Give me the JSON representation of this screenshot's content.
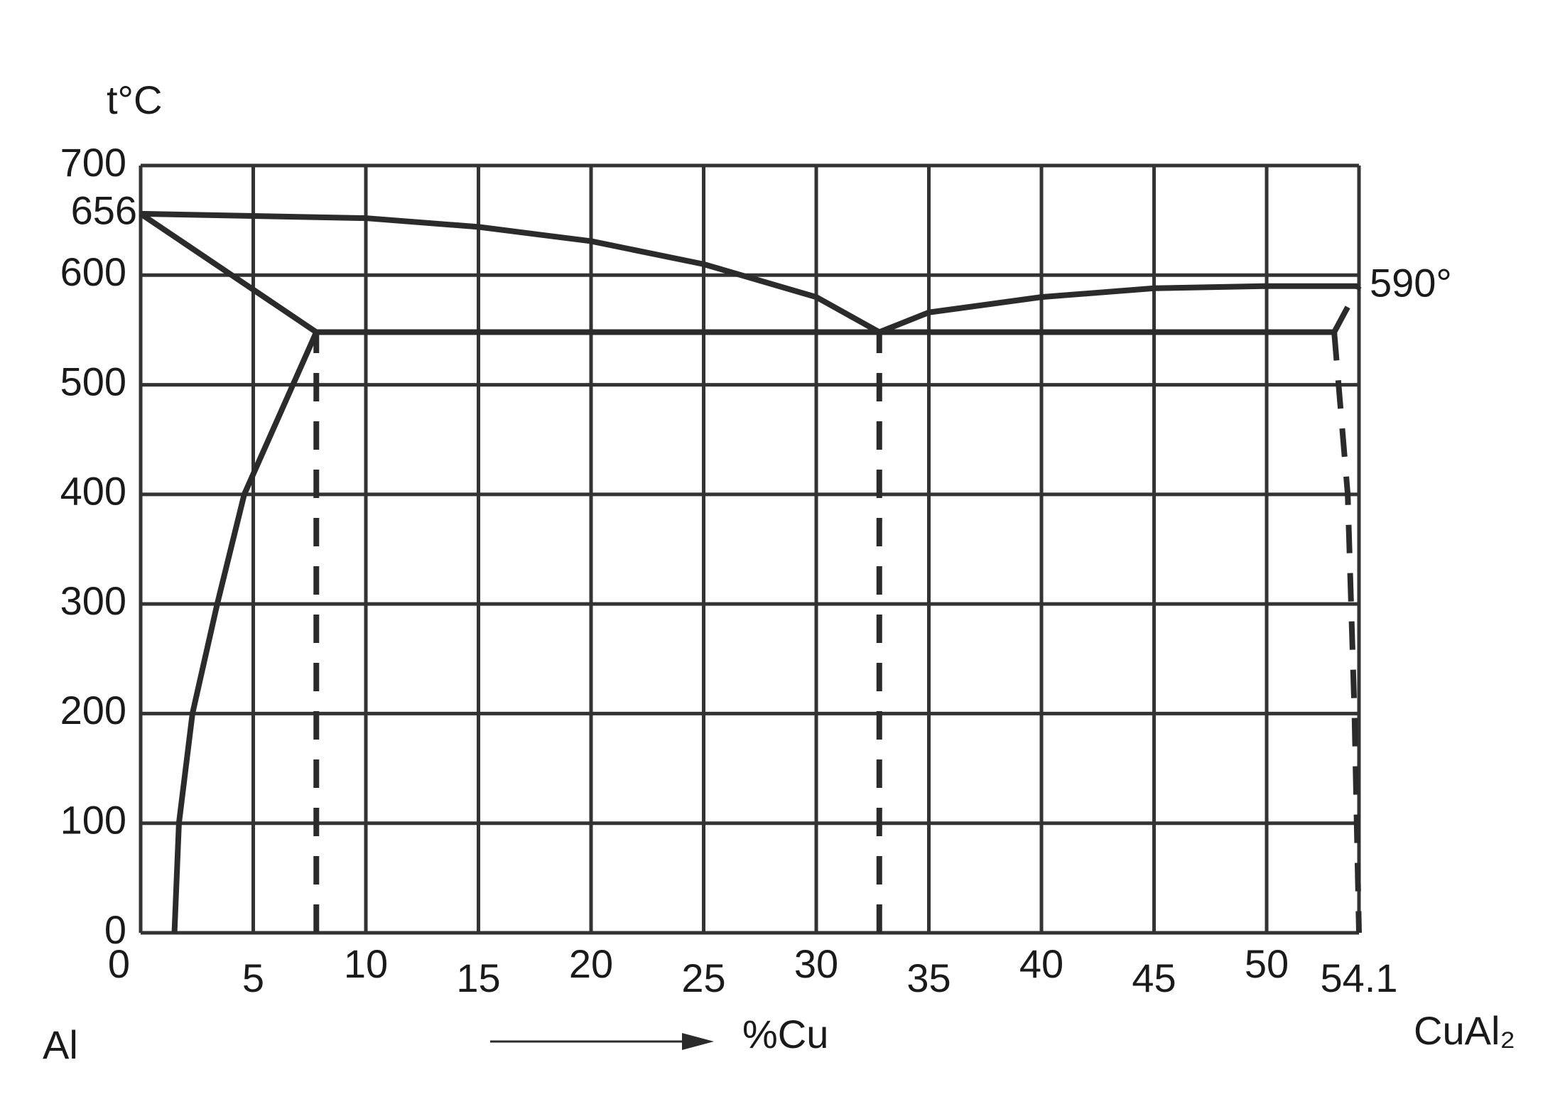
{
  "chart_data": {
    "type": "line",
    "y_label": "t°C",
    "x_label": "%Cu",
    "left_label": "Al",
    "right_label": "CuAl₂",
    "xlim": [
      0,
      54.1
    ],
    "ylim": [
      0,
      700
    ],
    "xticks": [
      0,
      5,
      10,
      15,
      20,
      25,
      30,
      35,
      40,
      45,
      50,
      54.1
    ],
    "yticks": [
      0,
      100,
      200,
      300,
      400,
      500,
      600,
      700
    ],
    "grid": true,
    "y_markers": [
      656,
      {
        "value": 590,
        "label": "590°"
      }
    ],
    "color": "#2b2b2b",
    "series": [
      {
        "style": "solid",
        "x": [
          0,
          10,
          15,
          20,
          25,
          30,
          32.8
        ],
        "values": [
          656,
          652,
          644,
          631,
          610,
          580,
          548
        ]
      },
      {
        "style": "solid",
        "x": [
          32.8,
          35,
          40,
          45,
          50,
          54.1
        ],
        "values": [
          548,
          566,
          580,
          588,
          590,
          590
        ]
      },
      {
        "style": "solid",
        "x": [
          0,
          7.8
        ],
        "values": [
          656,
          548
        ]
      },
      {
        "style": "solid",
        "x": [
          7.8,
          53
        ],
        "values": [
          548,
          548
        ]
      },
      {
        "style": "solid",
        "x": [
          1.5,
          1.7,
          2.3,
          3.4,
          4.6,
          7.8
        ],
        "values": [
          0,
          100,
          200,
          300,
          400,
          548
        ]
      },
      {
        "style": "dashed",
        "x": [
          7.8,
          7.8
        ],
        "values": [
          0,
          548
        ]
      },
      {
        "style": "dashed",
        "x": [
          32.8,
          32.8
        ],
        "values": [
          0,
          548
        ]
      },
      {
        "style": "dashed",
        "x": [
          53,
          54.1
        ],
        "values": [
          548,
          590
        ]
      },
      {
        "style": "dashed",
        "x": [
          53,
          53.6,
          53.9,
          54.1
        ],
        "values": [
          548,
          400,
          200,
          0
        ]
      }
    ]
  }
}
